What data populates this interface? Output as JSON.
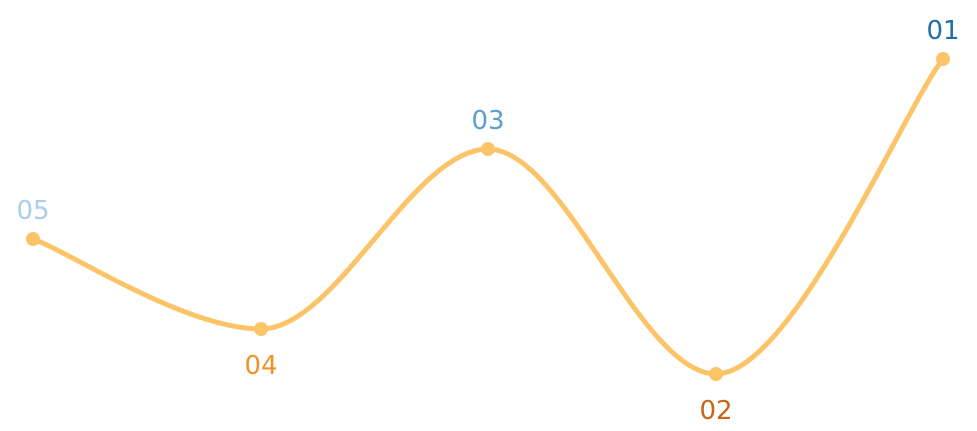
{
  "diagram": {
    "line_color": "#FBC468",
    "nodes": [
      {
        "id": "node-05",
        "label": "05",
        "label_color": "#A9CDEB",
        "label_position": "above"
      },
      {
        "id": "node-04",
        "label": "04",
        "label_color": "#F0922A",
        "label_position": "below"
      },
      {
        "id": "node-03",
        "label": "03",
        "label_color": "#5E9ECB",
        "label_position": "above"
      },
      {
        "id": "node-02",
        "label": "02",
        "label_color": "#C8651A",
        "label_position": "below"
      },
      {
        "id": "node-01",
        "label": "01",
        "label_color": "#1E6FA8",
        "label_position": "above"
      }
    ]
  }
}
